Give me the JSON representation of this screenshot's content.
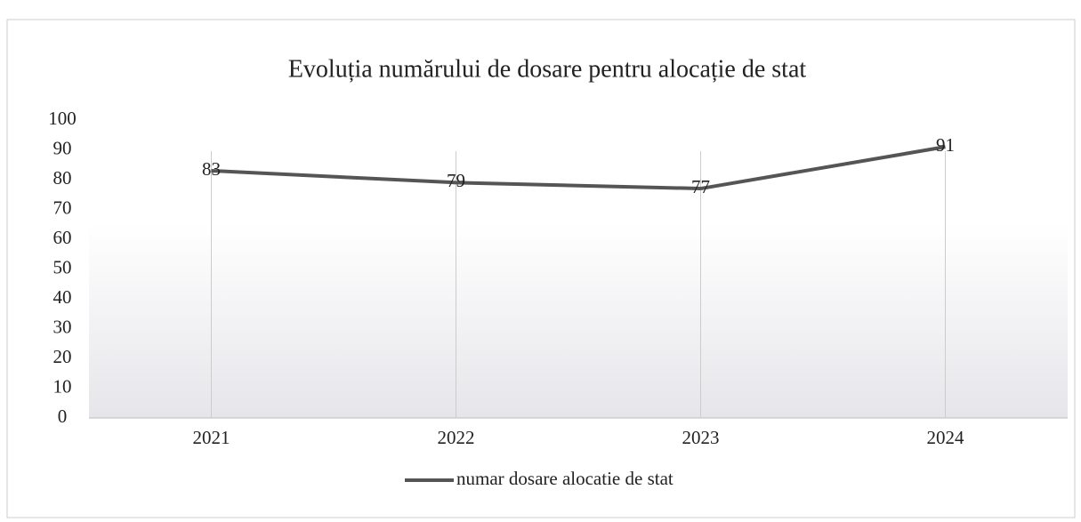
{
  "chart_data": {
    "type": "line",
    "title": "Evoluția numărului de dosare pentru alocație de stat",
    "categories": [
      "2021",
      "2022",
      "2023",
      "2024"
    ],
    "series": [
      {
        "name": "numar dosare alocatie de stat",
        "color": "#555555",
        "values": [
          83,
          79,
          77,
          91
        ]
      }
    ],
    "ylim": [
      0,
      100
    ],
    "yticks": [
      0,
      10,
      20,
      30,
      40,
      50,
      60,
      70,
      80,
      90,
      100
    ],
    "grid": true,
    "legend": "bottom"
  }
}
